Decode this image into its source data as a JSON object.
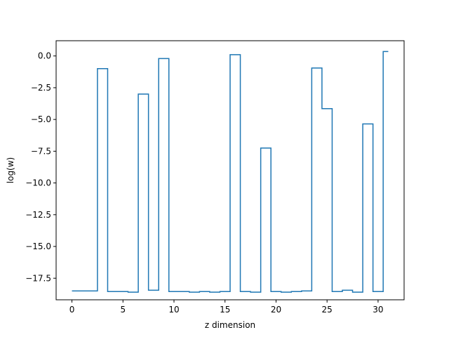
{
  "chart_data": {
    "type": "line",
    "drawstyle": "steps-mid",
    "title": "",
    "xlabel": "z dimension",
    "ylabel": "log(w)",
    "xlim": [
      -1.55,
      32.55
    ],
    "ylim": [
      -19.2,
      1.2
    ],
    "grid": false,
    "legend": "none",
    "x_ticks": [
      0,
      5,
      10,
      15,
      20,
      25,
      30
    ],
    "x_tick_labels": [
      "0",
      "5",
      "10",
      "15",
      "20",
      "25",
      "30"
    ],
    "y_ticks": [
      0,
      -2.5,
      -5,
      -7.5,
      -10,
      -12.5,
      -15,
      -17.5
    ],
    "y_tick_labels": [
      "0.0",
      "−2.5",
      "−5.0",
      "−7.5",
      "−10.0",
      "−12.5",
      "−15.0",
      "−17.5"
    ],
    "series": [
      {
        "color": "#1f77b4",
        "x": [
          0,
          1,
          2,
          3,
          4,
          5,
          6,
          7,
          8,
          9,
          10,
          11,
          12,
          13,
          14,
          15,
          16,
          17,
          18,
          19,
          20,
          21,
          22,
          23,
          24,
          25,
          26,
          27,
          28,
          29,
          30,
          31
        ],
        "values": [
          -18.5,
          -18.5,
          -18.5,
          -1.0,
          -18.55,
          -18.55,
          -18.6,
          -3.0,
          -18.45,
          -0.2,
          -18.55,
          -18.55,
          -18.6,
          -18.55,
          -18.6,
          -18.55,
          0.1,
          -18.55,
          -18.6,
          -7.25,
          -18.55,
          -18.6,
          -18.55,
          -18.5,
          -0.95,
          -4.15,
          -18.55,
          -18.45,
          -18.6,
          -5.35,
          -18.55,
          0.35
        ]
      }
    ]
  }
}
